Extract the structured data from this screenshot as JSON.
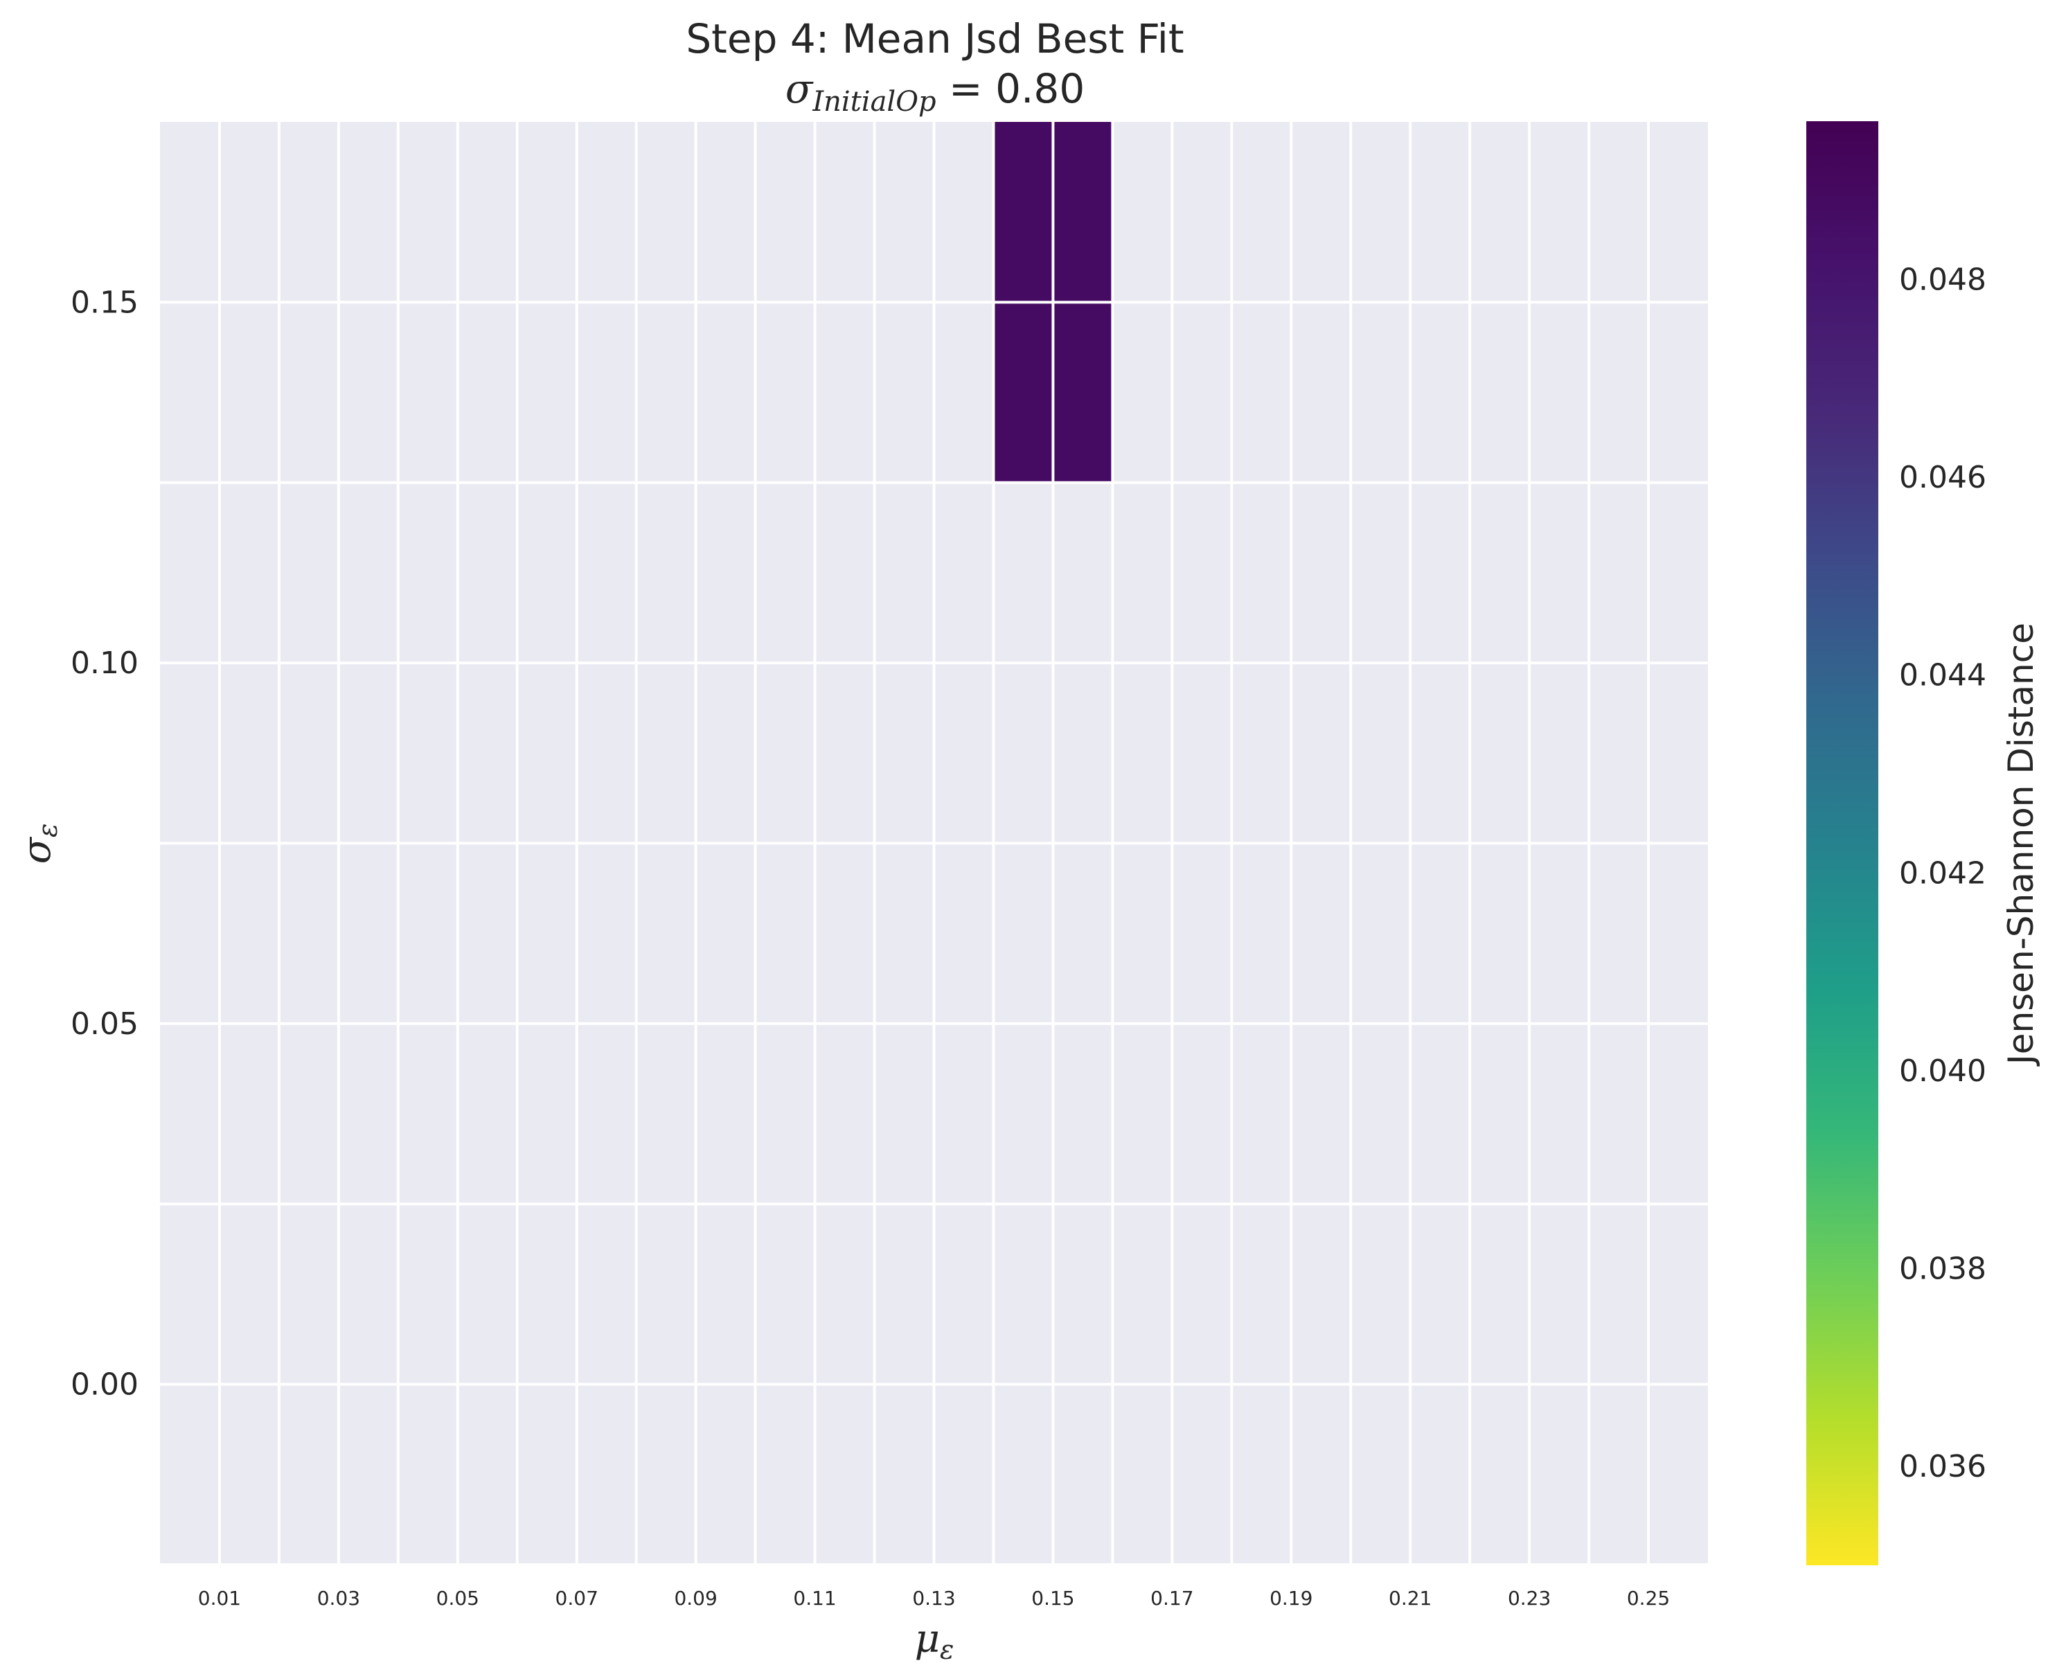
{
  "chart_data": {
    "type": "heatmap",
    "title": "Step 4: Mean Jsd Best Fit",
    "subtitle": {
      "symbol": "σ",
      "subscript": "InitialOp",
      "suffix": " = 0.80"
    },
    "xlabel": {
      "symbol": "μ",
      "subscript": "ε"
    },
    "ylabel": {
      "symbol": "σ",
      "subscript": "ε"
    },
    "x_ticks": [
      "0.01",
      "0.03",
      "0.05",
      "0.07",
      "0.09",
      "0.11",
      "0.13",
      "0.15",
      "0.17",
      "0.19",
      "0.21",
      "0.23",
      "0.25"
    ],
    "y_ticks": [
      {
        "value": 0.15,
        "label": "0.15"
      },
      {
        "value": 0.1,
        "label": "0.10"
      },
      {
        "value": 0.05,
        "label": "0.05"
      },
      {
        "value": 0.0,
        "label": "0.00"
      }
    ],
    "xlim": [
      0.0,
      0.26
    ],
    "ylim": [
      -0.025,
      0.175
    ],
    "cells": [
      {
        "x": 0.145,
        "y": 0.1375,
        "w": 0.01,
        "h": 0.025,
        "value": 0.0487
      },
      {
        "x": 0.145,
        "y": 0.1625,
        "w": 0.01,
        "h": 0.025,
        "value": 0.0487
      },
      {
        "x": 0.155,
        "y": 0.1375,
        "w": 0.01,
        "h": 0.025,
        "value": 0.0487
      },
      {
        "x": 0.155,
        "y": 0.1625,
        "w": 0.01,
        "h": 0.025,
        "value": 0.0487
      }
    ],
    "grid": true,
    "colorbar": {
      "label": "Jensen-Shannon Distance",
      "cmap": "viridis_r",
      "range": [
        0.035,
        0.0496
      ],
      "ticks": [
        "0.036",
        "0.038",
        "0.040",
        "0.042",
        "0.044",
        "0.046",
        "0.048"
      ]
    },
    "colors": {
      "plot_background": "#eaeaf2",
      "grid": "#ffffff",
      "text": "#262626"
    }
  }
}
